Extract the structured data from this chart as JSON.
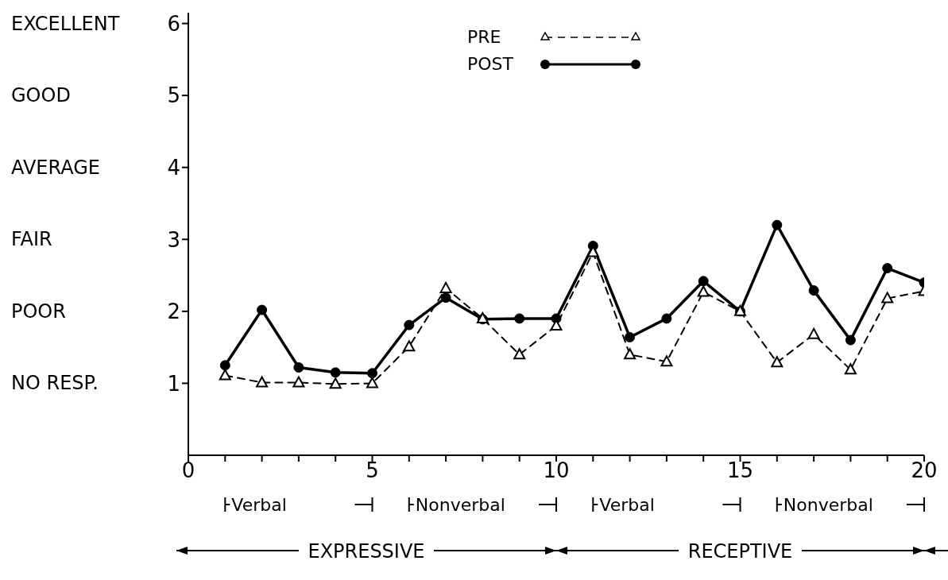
{
  "chart_data": {
    "type": "line",
    "x": [
      1,
      2,
      3,
      4,
      5,
      6,
      7,
      8,
      9,
      10,
      11,
      12,
      13,
      14,
      15,
      16,
      17,
      18,
      19,
      20
    ],
    "series": [
      {
        "name": "PRE",
        "color": "#000000",
        "marker": "triangle",
        "line_style": "dashed",
        "values": [
          1.11,
          1.01,
          1.01,
          0.99,
          1.0,
          1.51,
          2.32,
          1.9,
          1.4,
          1.8,
          2.82,
          1.4,
          1.3,
          2.27,
          2.0,
          1.29,
          1.68,
          1.19,
          2.18,
          2.28
        ]
      },
      {
        "name": "POST",
        "color": "#000000",
        "marker": "circle",
        "line_style": "solid",
        "values": [
          1.25,
          2.02,
          1.22,
          1.15,
          1.14,
          1.81,
          2.19,
          1.89,
          1.9,
          1.9,
          2.91,
          1.64,
          1.9,
          2.42,
          2.0,
          3.2,
          2.29,
          1.6,
          2.6,
          2.4
        ]
      }
    ],
    "xlim": [
      0,
      20
    ],
    "xticks": [
      0,
      {
        "value": 1,
        "label": null
      },
      {
        "value": 2,
        "label": null
      },
      {
        "value": 3,
        "label": null
      },
      {
        "value": 4,
        "label": null
      },
      5,
      {
        "value": 6,
        "label": null
      },
      {
        "value": 7,
        "label": null
      },
      {
        "value": 8,
        "label": null
      },
      {
        "value": 9,
        "label": null
      },
      10,
      {
        "value": 11,
        "label": null
      },
      {
        "value": 12,
        "label": null
      },
      {
        "value": 13,
        "label": null
      },
      {
        "value": 14,
        "label": null
      },
      15,
      {
        "value": 16,
        "label": null
      },
      {
        "value": 17,
        "label": null
      },
      {
        "value": 18,
        "label": null
      },
      {
        "value": 19,
        "label": null
      },
      20
    ],
    "ylim": [
      0,
      6.15
    ],
    "yticks": [
      1,
      2,
      3,
      4,
      5,
      6
    ],
    "annotations": [
      "Verbal",
      "Nonverbal",
      "Verbal",
      "Nonverbal",
      "EXPRESSIVE",
      "RECEPTIVE",
      "NO RESP.",
      "POOR",
      "FAIR",
      "AVERAGE",
      "GOOD",
      "EXCELLENT"
    ],
    "legend": "top",
    "grid": false
  }
}
